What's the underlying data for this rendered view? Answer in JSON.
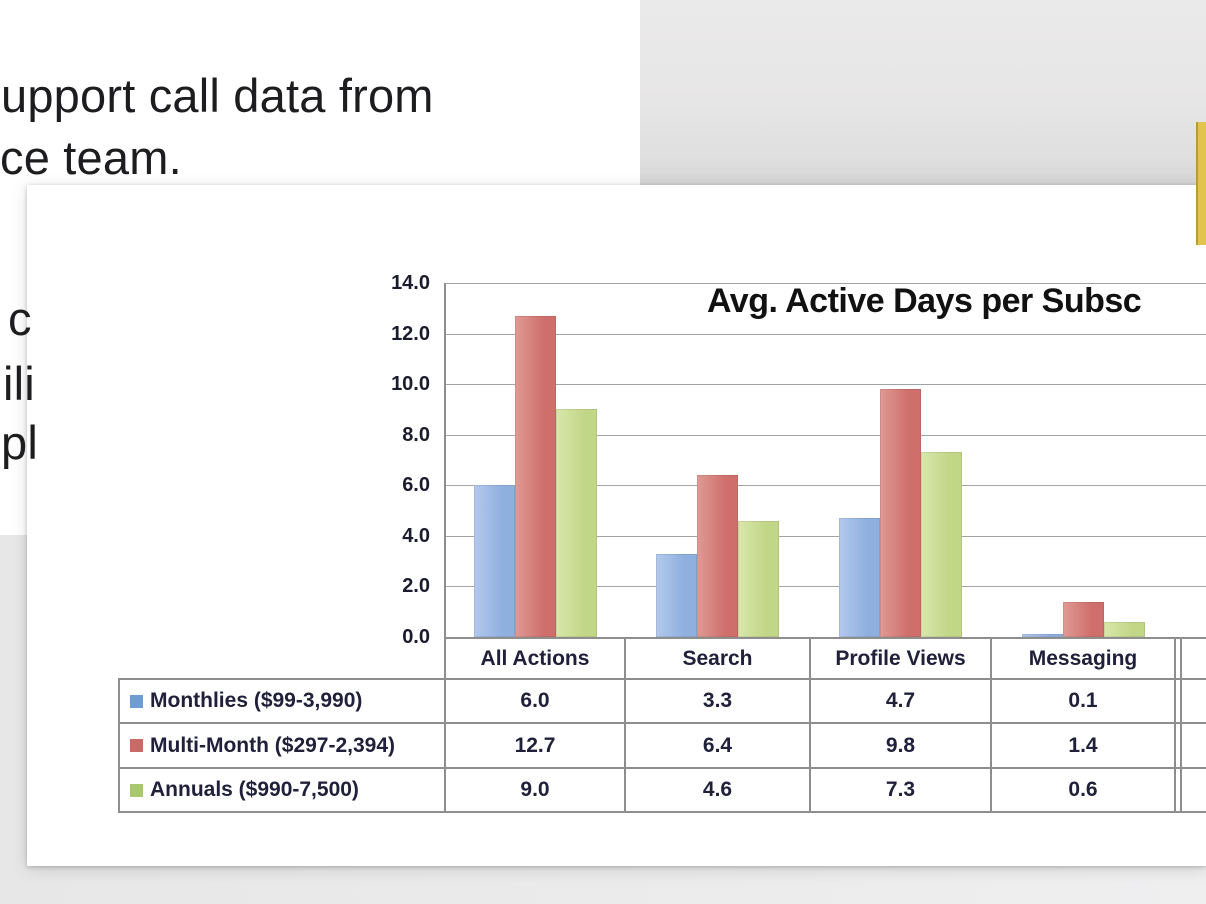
{
  "document": {
    "visible_text_lines": [
      "upport call data from",
      "ce team."
    ],
    "left_edge_fragments": [
      "c",
      "ili",
      "pl"
    ]
  },
  "viewer": {
    "comment_marker_color": "#e1c44e",
    "comment_marker_border_color": "#bb9c33",
    "card_background": "#ffffff",
    "app_background": "#eaeaea"
  },
  "chart_data": {
    "type": "bar",
    "title": "Avg. Active Days per Subsc",
    "categories": [
      "All Actions",
      "Search",
      "Profile Views",
      "Messaging"
    ],
    "series": [
      {
        "name": "Monthlies ($99-3,990)",
        "color": "#8fafdf",
        "color_light": "#b3c9ec",
        "swatch": "#6f9cd2",
        "values": [
          6.0,
          3.3,
          4.7,
          0.1
        ]
      },
      {
        "name": "Multi-Month ($297-2,394)",
        "color": "#cf6f6b",
        "color_light": "#e09a95",
        "swatch": "#c96a66",
        "values": [
          12.7,
          6.4,
          9.8,
          1.4
        ]
      },
      {
        "name": "Annuals ($990-7,500)",
        "color": "#c2d687",
        "color_light": "#d9e7ab",
        "swatch": "#a9c86d",
        "values": [
          9.0,
          4.6,
          7.3,
          0.6
        ]
      }
    ],
    "ylim": [
      0,
      14
    ],
    "ytick_step": 2,
    "ytick_decimals": 1,
    "grid": true,
    "legend_position": "left-table",
    "has_data_table": true
  }
}
